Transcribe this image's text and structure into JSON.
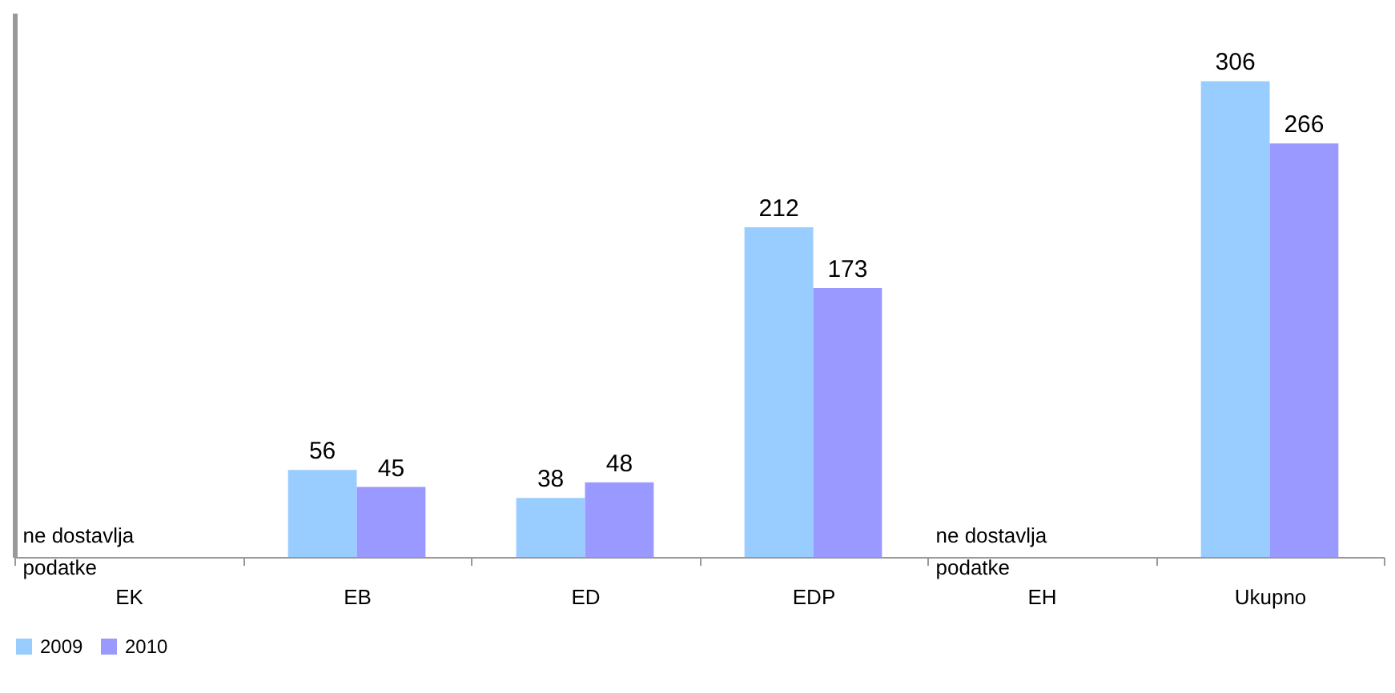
{
  "chart_data": {
    "type": "bar",
    "categories": [
      "EK",
      "EB",
      "ED",
      "EDP",
      "EH",
      "Ukupno"
    ],
    "series": [
      {
        "name": "2009",
        "color": "#99ccff",
        "values": [
          null,
          56,
          38,
          212,
          null,
          306
        ]
      },
      {
        "name": "2010",
        "color": "#9999ff",
        "values": [
          null,
          45,
          48,
          173,
          null,
          266
        ]
      }
    ],
    "data_labels": true,
    "legend": "bottom",
    "grid": false,
    "annotations": [
      "ne dostavlja\npodatke",
      "ne dostavlja\npodatke"
    ]
  }
}
